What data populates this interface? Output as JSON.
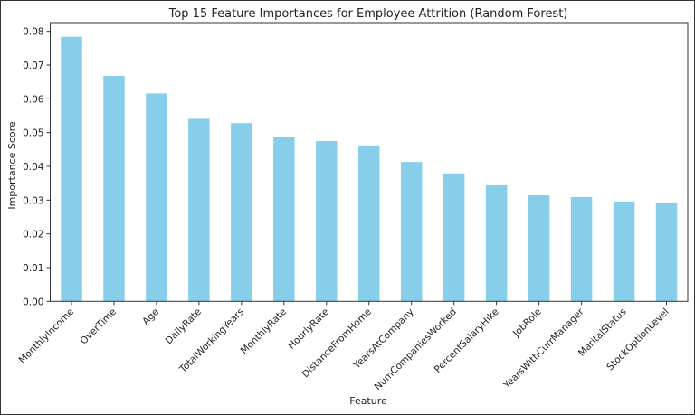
{
  "chart_data": {
    "type": "bar",
    "title": "Top 15 Feature Importances for Employee Attrition (Random Forest)",
    "xlabel": "Feature",
    "ylabel": "Importance Score",
    "ylim": [
      0,
      0.08
    ],
    "yticks": [
      "0.00",
      "0.01",
      "0.02",
      "0.03",
      "0.04",
      "0.05",
      "0.06",
      "0.07",
      "0.08"
    ],
    "grid": false,
    "bar_color": "#87CEEB",
    "categories": [
      "MonthlyIncome",
      "OverTime",
      "Age",
      "DailyRate",
      "TotalWorkingYears",
      "MonthlyRate",
      "HourlyRate",
      "DistanceFromHome",
      "YearsAtCompany",
      "NumCompaniesWorked",
      "PercentSalaryHike",
      "JobRole",
      "YearsWithCurrManager",
      "MaritalStatus",
      "StockOptionLevel"
    ],
    "values": [
      0.0784,
      0.0668,
      0.0616,
      0.0541,
      0.0528,
      0.0486,
      0.0475,
      0.0462,
      0.0413,
      0.0379,
      0.0344,
      0.0314,
      0.0309,
      0.0296,
      0.0293
    ]
  }
}
